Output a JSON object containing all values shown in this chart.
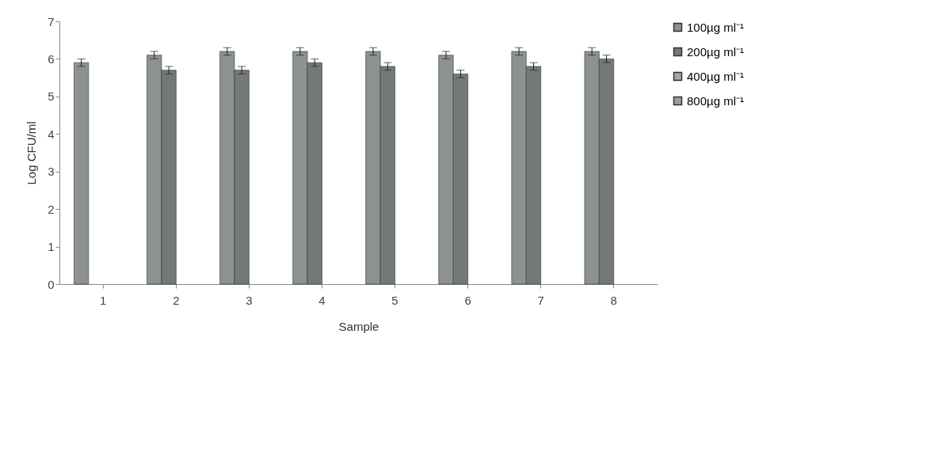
{
  "chart_data": {
    "type": "bar",
    "xlabel": "Sample",
    "ylabel": "Log CFU/ml",
    "categories": [
      "1",
      "2",
      "3",
      "4",
      "5",
      "6",
      "7",
      "8"
    ],
    "series": [
      {
        "name": "100µg ml⁻¹",
        "color": "#8c9191",
        "values": [
          5.9,
          6.1,
          6.2,
          6.2,
          6.2,
          6.1,
          6.2,
          6.2
        ],
        "errors": [
          0.1,
          0.1,
          0.1,
          0.1,
          0.1,
          0.1,
          0.1,
          0.1
        ]
      },
      {
        "name": "200µg ml⁻¹",
        "color": "#737979",
        "values": [
          null,
          5.7,
          5.7,
          5.9,
          5.8,
          5.6,
          5.8,
          6.0
        ],
        "errors": [
          null,
          0.1,
          0.1,
          0.1,
          0.1,
          0.1,
          0.1,
          0.1
        ]
      },
      {
        "name": "400µg ml⁻¹",
        "color": "#a3a7a7",
        "values": [
          null,
          null,
          null,
          null,
          null,
          null,
          null,
          null
        ]
      },
      {
        "name": "800µg ml⁻¹",
        "color": "#999e9e",
        "values": [
          null,
          null,
          null,
          null,
          null,
          null,
          null,
          null
        ]
      }
    ],
    "ylim": [
      0,
      7
    ],
    "yticks": [
      0,
      1,
      2,
      3,
      4,
      5,
      6,
      7
    ],
    "grid": false,
    "legend": "right"
  }
}
